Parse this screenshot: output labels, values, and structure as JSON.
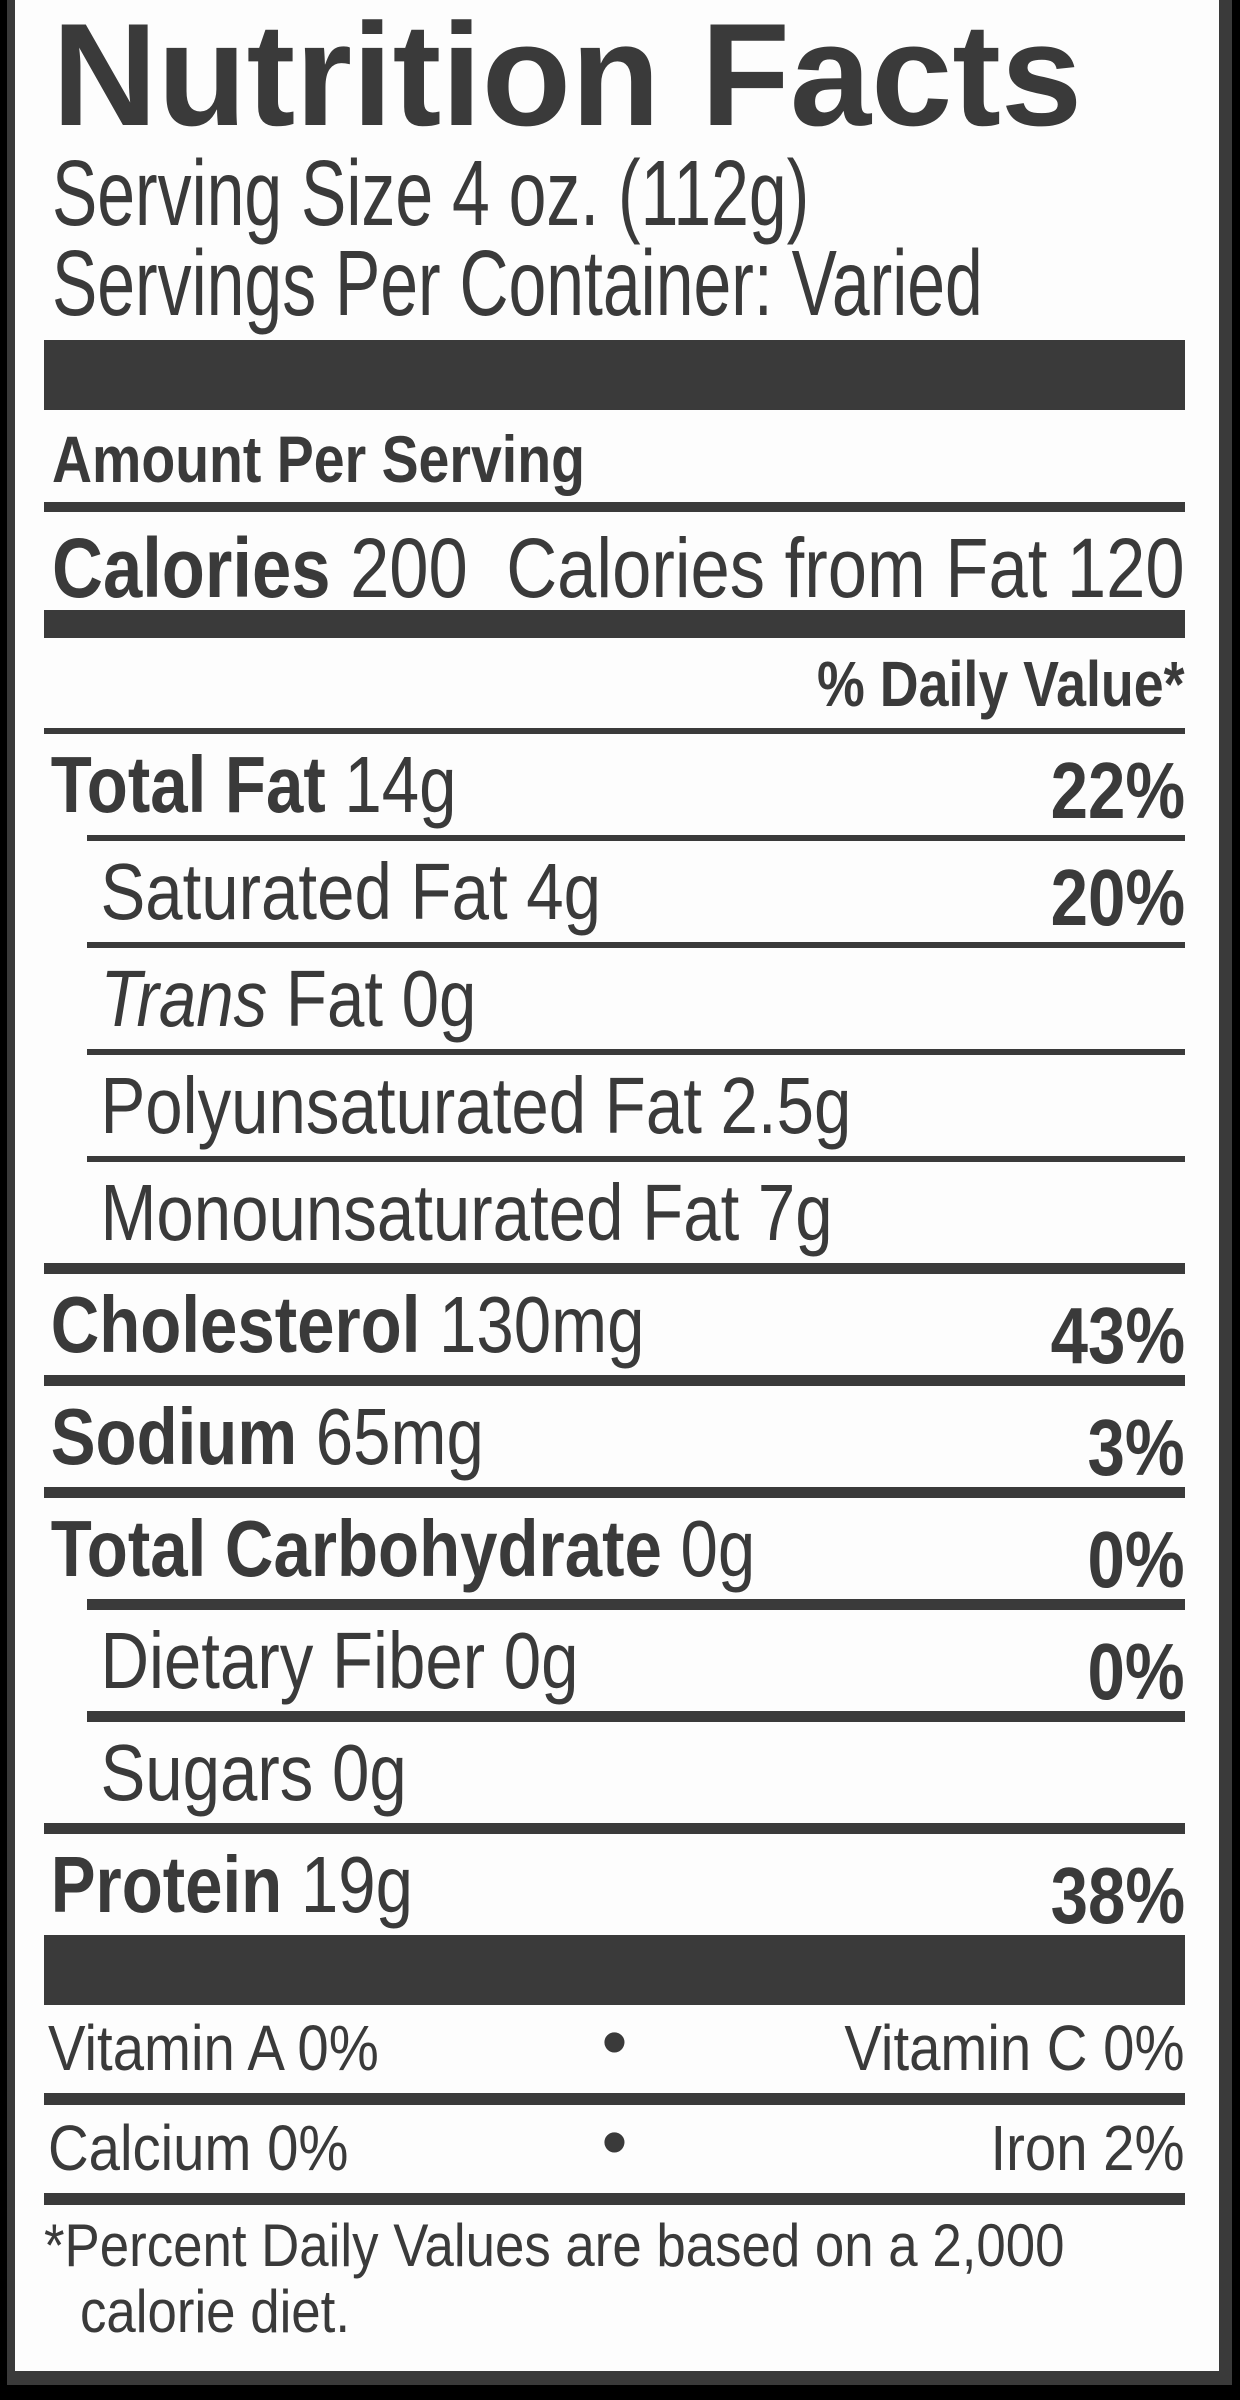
{
  "label": {
    "title": "Nutrition Facts",
    "serving_size": "Serving Size 4 oz. (112g)",
    "servings_per_container": "Servings Per Container: Varied",
    "amount_per_serving": "Amount Per Serving",
    "calories_label": "Calories",
    "calories_value": "200",
    "calories_from_fat_label": "Calories from Fat",
    "calories_from_fat_value": "120",
    "daily_value_header": "% Daily Value*",
    "footnote_line1": "*Percent Daily Values are based on a 2,000",
    "footnote_line2": "calorie diet.",
    "colors": {
      "ink": "#3a3a3a",
      "paper": "#fdfdfd",
      "backdrop": "#000000"
    }
  },
  "rows": [
    {
      "id": "total-fat",
      "type": "main",
      "sep": "sep-thin",
      "bold": "Total Fat",
      "amount": "14g",
      "dv": "22%"
    },
    {
      "id": "saturated-fat",
      "type": "sub",
      "sep": "sep-thin",
      "text": "Saturated Fat",
      "amount": "4g",
      "dv": "20%"
    },
    {
      "id": "trans-fat",
      "type": "sub",
      "sep": "sep-thin",
      "italic": "Trans",
      "text": "Fat",
      "amount": "0g",
      "dv": ""
    },
    {
      "id": "polyunsaturated-fat",
      "type": "sub",
      "sep": "sep-thin",
      "text": "Polyunsaturated Fat",
      "amount": "2.5g",
      "dv": ""
    },
    {
      "id": "monounsaturated-fat",
      "type": "sub",
      "sep": "sep-thin",
      "text": "Monounsaturated Fat",
      "amount": "7g",
      "dv": ""
    },
    {
      "id": "cholesterol",
      "type": "main",
      "sep": "sep-med",
      "bold": "Cholesterol",
      "amount": "130mg",
      "dv": "43%"
    },
    {
      "id": "sodium",
      "type": "main",
      "sep": "sep-med",
      "bold": "Sodium",
      "amount": "65mg",
      "dv": "3%"
    },
    {
      "id": "total-carbohydrate",
      "type": "main",
      "sep": "sep-med",
      "bold": "Total Carbohydrate",
      "amount": "0g",
      "dv": "0%"
    },
    {
      "id": "dietary-fiber",
      "type": "sub",
      "sep": "sep-med",
      "text": "Dietary Fiber",
      "amount": "0g",
      "dv": "0%"
    },
    {
      "id": "sugars",
      "type": "sub",
      "sep": "sep-med",
      "text": "Sugars",
      "amount": "0g",
      "dv": ""
    },
    {
      "id": "protein",
      "type": "main",
      "sep": "sep-med",
      "bold": "Protein",
      "amount": "19g",
      "dv": "38%"
    }
  ],
  "micronutrients": {
    "bullet": "•",
    "rows": [
      {
        "left": "Vitamin A 0%",
        "right": "Vitamin C 0%"
      },
      {
        "left": "Calcium 0%",
        "right": "Iron 2%"
      }
    ]
  }
}
